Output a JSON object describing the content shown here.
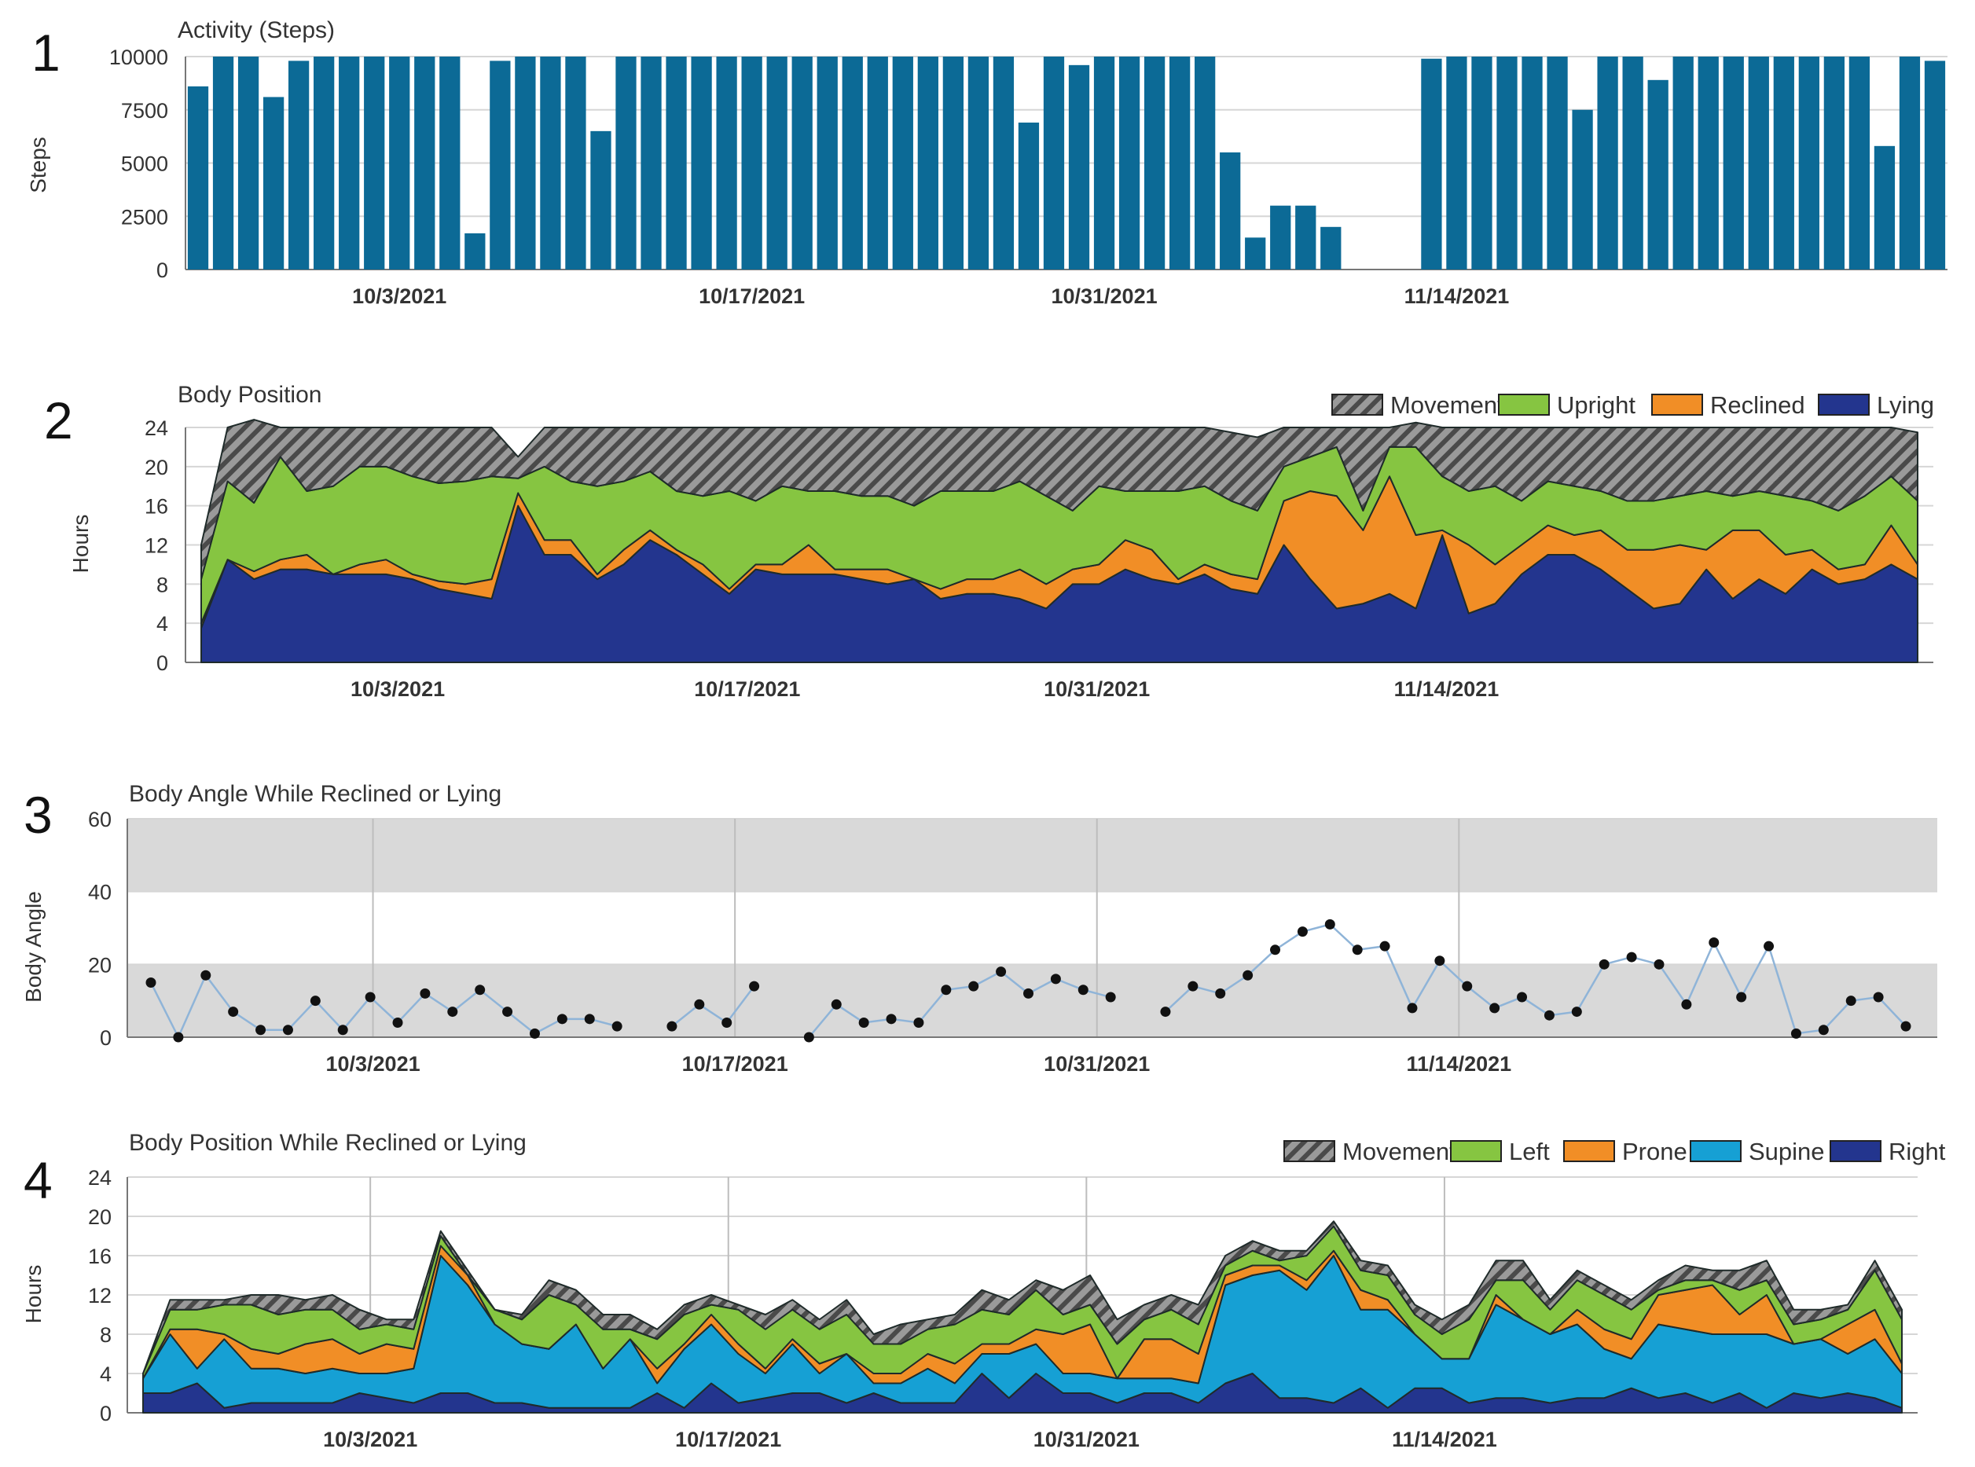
{
  "colors": {
    "steps": "#0c6a96",
    "movement": "#8c8c8c",
    "upright": "#86c541",
    "reclined": "#f18e26",
    "lying": "#23358e",
    "left": "#86c541",
    "prone": "#f18e26",
    "supine": "#16a0d4",
    "right": "#23358e",
    "band": "#d9d9d9",
    "grid": "#d6d6d6",
    "angle_line": "#8fb4d8",
    "angle_dot": "#111111"
  },
  "chart_data": [
    {
      "panel": "1",
      "type": "bar",
      "title": "Activity (Steps)",
      "ylabel": "Steps",
      "xlabel": "",
      "ylim": [
        0,
        10000
      ],
      "yticks": [
        "10000",
        "7500",
        "5000",
        "2500",
        "0"
      ],
      "yticks_values": [
        10000,
        7500,
        5000,
        2500,
        0
      ],
      "xtick_labels": [
        "10/3/2021",
        "10/17/2021",
        "10/31/2021",
        "11/14/2021"
      ],
      "xtick_day_index": [
        8,
        22,
        36,
        50
      ],
      "day_labels_from": "2021-09-25",
      "values": [
        8600,
        10000,
        10000,
        8100,
        9800,
        10000,
        10000,
        10000,
        10000,
        10000,
        10000,
        1700,
        9800,
        10000,
        10000,
        10000,
        6500,
        10000,
        10000,
        10000,
        10000,
        10000,
        10000,
        10000,
        10000,
        10000,
        10000,
        10000,
        10000,
        10000,
        10000,
        10000,
        10000,
        6900,
        10000,
        9600,
        10000,
        10000,
        10000,
        10000,
        10000,
        5500,
        1500,
        3000,
        3000,
        2000,
        null,
        null,
        null,
        9900,
        10000,
        10000,
        10000,
        10000,
        10000,
        7500,
        10000,
        10000,
        8900,
        10000,
        10000,
        10000,
        10000,
        10000,
        10000,
        10000,
        10000,
        5800,
        10000,
        9800
      ]
    },
    {
      "panel": "2",
      "type": "area",
      "stacked": true,
      "title": "Body Position",
      "ylabel": "Hours",
      "ylim": [
        0,
        24
      ],
      "yticks": [
        "24",
        "20",
        "16",
        "12",
        "8",
        "4",
        "0"
      ],
      "yticks_values": [
        24,
        20,
        16,
        12,
        8,
        4,
        0
      ],
      "xtick_labels": [
        "10/3/2021",
        "10/17/2021",
        "10/31/2021",
        "11/14/2021"
      ],
      "xtick_day_index": [
        8,
        22,
        36,
        50
      ],
      "legend": [
        "Movement",
        "Upright",
        "Reclined",
        "Lying"
      ],
      "legend_position": "top-right",
      "series": [
        {
          "name": "Lying",
          "color_key": "lying",
          "values": [
            3.5,
            10.5,
            8.5,
            9.5,
            9.5,
            9,
            9,
            9,
            8.5,
            7.5,
            7,
            6.5,
            16,
            11,
            11,
            8.5,
            10,
            12.5,
            11,
            9,
            7,
            9.5,
            9,
            9,
            9,
            8.5,
            8,
            8.5,
            6.5,
            7,
            7,
            6.5,
            5.5,
            8,
            8,
            9.5,
            8.5,
            8,
            9,
            7.5,
            7,
            12,
            8.5,
            5.5,
            6,
            7,
            5.5,
            13,
            5,
            6,
            9,
            11,
            11,
            9.5,
            7.5,
            5.5,
            6,
            9.5,
            6.5,
            8.5,
            7,
            9.5,
            8,
            8.5,
            10,
            8.5
          ]
        },
        {
          "name": "Reclined",
          "color_key": "reclined",
          "values": [
            0.5,
            0,
            0.8,
            1,
            1.5,
            0,
            1,
            1.5,
            0.5,
            0.8,
            1,
            2,
            1.3,
            1.5,
            1.5,
            0.5,
            1.5,
            1,
            0.5,
            1,
            0.5,
            0.5,
            1,
            3,
            0.5,
            1,
            1.5,
            0,
            1,
            1.5,
            1.5,
            3,
            2.5,
            1.5,
            2,
            3,
            3,
            0.5,
            1,
            1.5,
            1.5,
            4.5,
            9,
            11.5,
            7.5,
            12,
            7.5,
            0.5,
            7,
            4,
            3,
            3,
            2,
            4,
            4,
            6,
            6,
            2,
            7,
            5,
            4,
            2,
            1.5,
            1.5,
            4,
            1.5
          ]
        },
        {
          "name": "Upright",
          "color_key": "upright",
          "values": [
            4.5,
            8,
            7,
            10.5,
            6.5,
            9,
            10,
            9.5,
            10,
            10,
            10.5,
            10.5,
            1.5,
            7.5,
            6,
            9,
            7,
            6,
            6,
            7,
            10,
            6.5,
            8,
            5.5,
            8,
            7.5,
            7.5,
            7.5,
            10,
            9,
            9,
            9,
            9,
            6,
            8,
            5,
            6,
            9,
            8,
            7.5,
            7,
            3.5,
            3.5,
            5,
            2,
            3,
            9,
            5.5,
            5.5,
            8,
            4.5,
            4.5,
            5,
            4,
            5,
            5,
            5,
            6,
            3.5,
            4,
            6,
            5,
            6,
            7,
            5,
            6.5
          ]
        },
        {
          "name": "Movement",
          "color_key": "movement",
          "values": [
            3.5,
            5.5,
            8.5,
            3,
            6.5,
            6,
            4,
            4,
            5,
            5.7,
            5.5,
            5,
            2.2,
            4,
            5.5,
            6,
            5.5,
            4.5,
            6.5,
            7,
            6.5,
            7.5,
            6,
            6.5,
            6.5,
            7,
            7,
            8,
            6.5,
            6.5,
            6.5,
            5.5,
            7,
            8.5,
            6,
            6.5,
            6.5,
            6.5,
            6,
            7,
            7.5,
            4,
            3,
            2,
            8.5,
            2,
            2.5,
            5,
            6.5,
            6,
            7.5,
            5.5,
            6,
            6.5,
            7.5,
            7.5,
            7,
            6.5,
            7,
            6.5,
            7,
            7.5,
            8.5,
            7,
            5,
            7
          ]
        }
      ]
    },
    {
      "panel": "3",
      "type": "line",
      "title": "Body Angle While Reclined or Lying",
      "ylabel": "Body Angle",
      "ylim": [
        0,
        60
      ],
      "yticks": [
        "60",
        "40",
        "20",
        "0"
      ],
      "yticks_values": [
        60,
        40,
        20,
        0
      ],
      "shaded_bands": [
        [
          0,
          20
        ],
        [
          40,
          60
        ]
      ],
      "xtick_labels": [
        "10/3/2021",
        "10/17/2021",
        "10/31/2021",
        "11/14/2021"
      ],
      "xtick_day_index": [
        9,
        23,
        37,
        51
      ],
      "values": [
        15,
        0,
        17,
        7,
        2,
        2,
        10,
        2,
        11,
        4,
        12,
        7,
        13,
        7,
        1,
        5,
        5,
        3,
        null,
        3,
        9,
        4,
        14,
        null,
        0,
        9,
        4,
        5,
        4,
        13,
        14,
        18,
        12,
        16,
        13,
        11,
        null,
        7,
        14,
        12,
        17,
        24,
        29,
        31,
        24,
        25,
        8,
        21,
        14,
        8,
        11,
        6,
        7,
        20,
        22,
        20,
        9,
        26,
        11,
        25,
        1,
        2,
        10,
        11,
        3
      ]
    },
    {
      "panel": "4",
      "type": "area",
      "stacked": true,
      "title": "Body Position While Reclined or Lying",
      "ylabel": "Hours",
      "ylim": [
        0,
        24
      ],
      "yticks": [
        "24",
        "20",
        "16",
        "12",
        "8",
        "4",
        "0"
      ],
      "yticks_values": [
        24,
        20,
        16,
        12,
        8,
        4,
        0
      ],
      "xtick_labels": [
        "10/3/2021",
        "10/17/2021",
        "10/31/2021",
        "11/14/2021"
      ],
      "xtick_day_index": [
        9,
        23,
        37,
        51
      ],
      "legend": [
        "Movement",
        "Left",
        "Prone",
        "Supine",
        "Right"
      ],
      "legend_position": "top-right",
      "series": [
        {
          "name": "Right",
          "color_key": "right",
          "values": [
            2,
            2,
            3,
            0.5,
            1,
            1,
            1,
            1,
            2,
            1.5,
            1,
            2,
            2,
            1,
            1,
            0.5,
            0.5,
            0.5,
            0.5,
            2,
            0.5,
            3,
            1,
            1.5,
            2,
            2,
            1,
            2,
            1,
            1,
            1,
            4,
            1.5,
            4,
            2,
            2,
            1,
            2,
            2,
            1,
            3,
            4,
            1.5,
            1.5,
            1,
            2.5,
            0.5,
            2.5,
            2.5,
            1,
            1.5,
            1.5,
            1,
            1.5,
            1.5,
            2.5,
            1.5,
            2,
            1,
            2,
            0.5,
            2,
            1.5,
            2,
            1.5,
            0.5
          ]
        },
        {
          "name": "Supine",
          "color_key": "supine",
          "values": [
            1.5,
            6,
            1.5,
            7,
            3.5,
            3.5,
            3,
            3.5,
            2,
            2.5,
            3.5,
            14,
            11,
            8,
            6,
            6,
            8.5,
            4,
            7,
            1,
            6,
            6,
            5,
            2.5,
            5,
            2,
            5,
            1,
            2,
            3.5,
            2,
            2,
            4.5,
            3,
            2,
            2,
            2.5,
            1.5,
            1.5,
            2,
            10,
            10,
            13,
            11,
            15,
            8,
            10,
            5.5,
            3,
            4.5,
            9.5,
            8,
            7,
            7.5,
            5,
            3,
            7.5,
            6.5,
            7,
            6,
            7.5,
            5,
            6,
            4,
            6,
            3.5
          ]
        },
        {
          "name": "Prone",
          "color_key": "prone",
          "values": [
            0,
            0.5,
            4,
            0.5,
            2,
            1.5,
            3,
            3,
            2,
            3,
            2,
            1,
            1,
            0,
            0,
            0,
            0,
            0,
            0,
            1.5,
            0.5,
            1,
            1,
            0.5,
            0.5,
            1,
            0,
            1,
            1,
            1.5,
            2,
            1,
            1,
            1.5,
            4,
            5,
            0,
            4,
            4,
            3,
            1,
            1,
            0.5,
            1,
            0.5,
            2,
            1,
            0,
            0,
            0,
            1,
            0,
            0,
            1.5,
            2,
            2,
            3,
            4,
            5,
            2,
            4,
            0,
            0,
            3,
            3,
            1
          ]
        },
        {
          "name": "Left",
          "color_key": "left",
          "values": [
            0.5,
            2,
            2,
            3,
            4.5,
            4,
            3.5,
            3,
            2.5,
            2,
            2,
            1,
            0,
            1.5,
            2.5,
            5.5,
            2,
            4,
            1,
            3,
            3,
            1,
            3.5,
            4,
            3,
            3.5,
            4,
            3,
            3,
            2.5,
            4,
            3.5,
            3,
            4,
            2,
            2,
            3.5,
            2,
            3,
            3,
            1,
            1.5,
            0.5,
            2.5,
            2.5,
            2,
            2.5,
            2,
            2.5,
            4,
            1.5,
            4,
            2.5,
            3,
            3.5,
            3,
            0.5,
            1,
            0.5,
            2.5,
            1.5,
            2,
            2,
            1.5,
            4,
            4.5
          ]
        },
        {
          "name": "Movement",
          "color_key": "movement",
          "values": [
            0,
            1,
            1,
            0.5,
            1,
            2,
            1,
            1.5,
            2,
            0.5,
            1,
            0.5,
            0.5,
            0,
            0.5,
            1.5,
            1.5,
            1.5,
            1.5,
            1,
            1,
            1,
            0.5,
            1.5,
            1,
            1,
            1.5,
            1,
            2,
            1,
            1,
            2,
            1.5,
            1,
            2.5,
            3,
            2.5,
            1.5,
            1.5,
            2,
            1,
            1,
            1,
            0.5,
            0.5,
            1,
            1,
            1,
            1.5,
            1.5,
            2,
            2,
            1,
            1,
            1,
            1,
            1,
            1.5,
            1,
            2,
            2,
            1.5,
            1,
            0.5,
            1,
            1
          ]
        }
      ]
    }
  ]
}
